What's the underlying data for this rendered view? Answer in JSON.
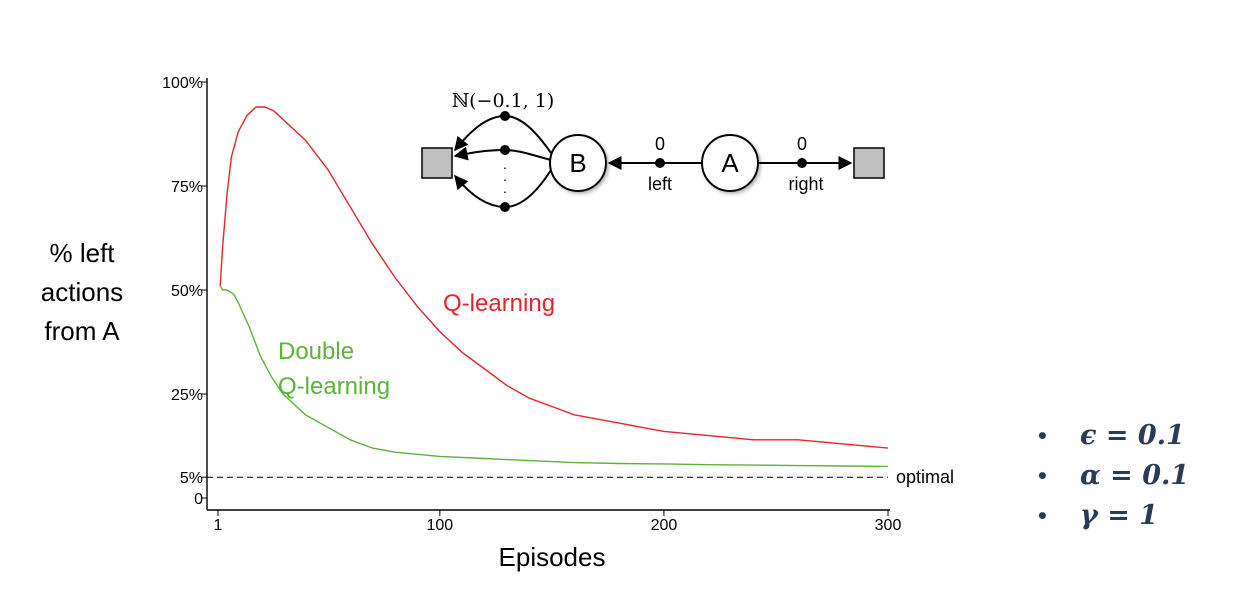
{
  "chart_data": {
    "type": "line",
    "xlabel": "Episodes",
    "ylabel_lines": [
      "% left",
      "actions",
      "from A"
    ],
    "xlim": [
      1,
      300
    ],
    "ylim": [
      0,
      100
    ],
    "x_ticks": [
      1,
      100,
      200,
      300
    ],
    "y_ticks": [
      {
        "value": 100,
        "label": "100%"
      },
      {
        "value": 75,
        "label": "75%"
      },
      {
        "value": 50,
        "label": "50%"
      },
      {
        "value": 25,
        "label": "25%"
      },
      {
        "value": 5,
        "label": "5%"
      },
      {
        "value": 0,
        "label": "0"
      }
    ],
    "reference_line": {
      "value": 5,
      "label": "optimal",
      "style": "dashed"
    },
    "series": [
      {
        "name": "Q-learning",
        "color": "#e3262b",
        "x": [
          2,
          3,
          5,
          7,
          10,
          14,
          18,
          22,
          26,
          30,
          40,
          50,
          60,
          70,
          80,
          90,
          100,
          110,
          120,
          130,
          140,
          150,
          160,
          180,
          200,
          220,
          240,
          260,
          280,
          300
        ],
        "y": [
          51,
          60,
          73,
          82,
          88,
          92,
          94,
          94,
          93,
          91,
          86,
          79,
          70,
          61,
          53,
          46,
          40,
          35,
          31,
          27,
          24,
          22,
          20,
          18,
          16,
          15,
          14,
          14,
          13,
          12
        ]
      },
      {
        "name": "Double Q-learning",
        "color": "#5bb33a",
        "x": [
          2,
          3,
          5,
          8,
          10,
          15,
          20,
          25,
          30,
          40,
          50,
          60,
          70,
          80,
          90,
          100,
          120,
          140,
          160,
          180,
          200,
          220,
          240,
          260,
          280,
          300
        ],
        "y": [
          51,
          50,
          50,
          49,
          47,
          41,
          34,
          29,
          25,
          20,
          17,
          14,
          12,
          11,
          10.5,
          10,
          9.5,
          9,
          8.5,
          8.3,
          8.2,
          8,
          7.9,
          7.8,
          7.7,
          7.6
        ]
      }
    ],
    "series_labels": {
      "q": "Q-learning",
      "dq_line1": "Double",
      "dq_line2": "Q-learning"
    }
  },
  "diagram": {
    "node_a": "A",
    "node_b": "B",
    "left_reward": "0",
    "left_label": "left",
    "right_reward": "0",
    "right_label": "right",
    "distribution": "ℕ(−0.1, 1)",
    "dots": "·\n·\n·"
  },
  "params": [
    {
      "bullet": "•",
      "text": "ϵ = 0.1"
    },
    {
      "bullet": "•",
      "text": "α = 0.1"
    },
    {
      "bullet": "•",
      "text": "γ = 1"
    }
  ]
}
